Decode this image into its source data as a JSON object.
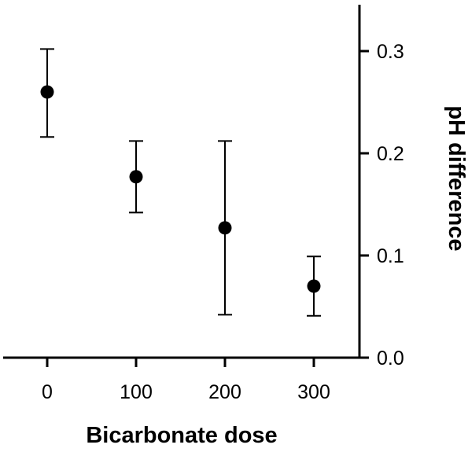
{
  "chart_data": {
    "type": "scatter",
    "title": "",
    "xlabel": "Bicarbonate dose",
    "ylabel": "pH difference",
    "x_ticks": [
      "0",
      "100",
      "200",
      "300"
    ],
    "y_ticks": [
      "0.0",
      "0.1",
      "0.2",
      "0.3"
    ],
    "xlim": [
      -40,
      350
    ],
    "ylim": [
      0,
      0.35
    ],
    "y_axis_side": "right",
    "grid": false,
    "legend": "none",
    "marker_color": "#000000",
    "points": [
      {
        "x": 0,
        "y": 0.26,
        "err_low": 0.216,
        "err_high": 0.302
      },
      {
        "x": 100,
        "y": 0.177,
        "err_low": 0.142,
        "err_high": 0.212
      },
      {
        "x": 200,
        "y": 0.127,
        "err_low": 0.042,
        "err_high": 0.212
      },
      {
        "x": 300,
        "y": 0.07,
        "err_low": 0.041,
        "err_high": 0.099
      }
    ]
  }
}
